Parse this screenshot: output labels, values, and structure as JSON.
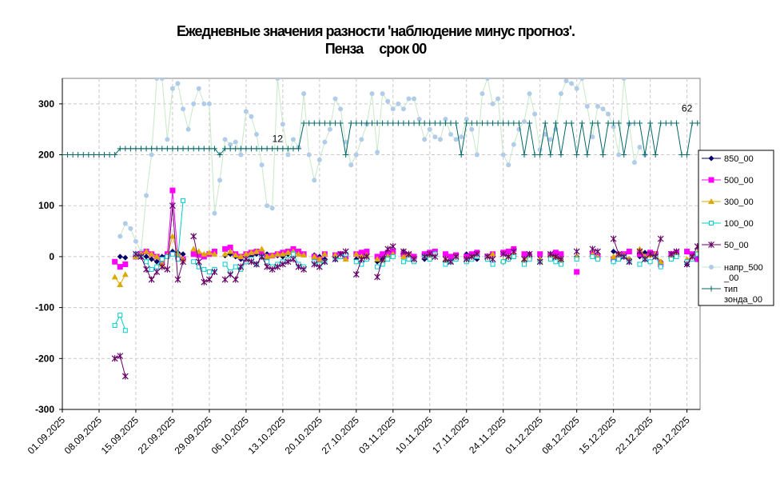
{
  "title_line1": "Ежедневные значения разности 'наблюдение минус прогноз'.",
  "title_line2": "Пенза     срок 00",
  "chart_data": {
    "type": "line",
    "title": "Ежедневные значения разности 'наблюдение минус прогноз'. Пенза срок 00",
    "xlabel": "",
    "ylabel": "",
    "ylim": [
      -300,
      350
    ],
    "yticks": [
      -300,
      -200,
      -100,
      0,
      100,
      200,
      300
    ],
    "x_start": "01.09.2025",
    "x_ticks": [
      "01.09.2025",
      "08.09.2025",
      "15.09.2025",
      "22.09.2025",
      "29.09.2025",
      "06.10.2025",
      "13.10.2025",
      "20.10.2025",
      "27.10.2025",
      "03.11.2025",
      "10.11.2025",
      "17.11.2025",
      "24.11.2025",
      "01.12.2025",
      "08.12.2025",
      "15.12.2025",
      "22.12.2025",
      "29.12.2025"
    ],
    "grid": true,
    "legend_position": "right",
    "annotations": [
      {
        "text": "12",
        "day": 41,
        "y": 225
      },
      {
        "text": "62",
        "day": 119,
        "y": 285
      }
    ],
    "series": [
      {
        "name": "850_00",
        "color": "#000066",
        "marker": "diamond",
        "start_day": 10,
        "values": [
          null,
          0,
          -2,
          null,
          5,
          3,
          0,
          -5,
          -10,
          0,
          5,
          10,
          8,
          5,
          null,
          5,
          3,
          0,
          5,
          8,
          null,
          2,
          5,
          0,
          -5,
          -10,
          0,
          5,
          8,
          5,
          3,
          2,
          0,
          5,
          8,
          10,
          5,
          null,
          3,
          0,
          -5,
          null,
          2,
          0,
          5,
          null,
          -5,
          0,
          5,
          null,
          -10,
          -5,
          0,
          5,
          null,
          10,
          5,
          0,
          null,
          -5,
          0,
          5,
          null,
          -10,
          -5,
          0,
          null,
          5,
          0,
          -5,
          null,
          0,
          5,
          null,
          -10,
          -5,
          0,
          null,
          3,
          5,
          null,
          0,
          null,
          5,
          0,
          -5,
          null,
          null,
          0,
          null,
          null,
          5,
          0,
          null,
          null,
          10,
          5,
          0,
          -5,
          null,
          0,
          8,
          5,
          0,
          -10,
          null,
          0,
          5,
          null,
          -15,
          0,
          5,
          null,
          -5,
          0,
          8,
          5,
          0,
          -10
        ]
      },
      {
        "name": "500_00",
        "color": "#FF00FF",
        "marker": "square",
        "start_day": 10,
        "values": [
          -10,
          -20,
          -15,
          null,
          0,
          5,
          10,
          5,
          0,
          -10,
          5,
          130,
          0,
          -5,
          null,
          5,
          3,
          0,
          5,
          10,
          null,
          15,
          18,
          5,
          0,
          5,
          8,
          10,
          5,
          0,
          2,
          5,
          8,
          10,
          15,
          10,
          5,
          null,
          0,
          -5,
          5,
          null,
          3,
          5,
          0,
          null,
          5,
          8,
          10,
          null,
          0,
          5,
          8,
          10,
          null,
          5,
          3,
          0,
          null,
          5,
          8,
          10,
          null,
          5,
          0,
          3,
          null,
          0,
          5,
          8,
          null,
          0,
          5,
          null,
          8,
          10,
          15,
          null,
          5,
          0,
          null,
          5,
          null,
          3,
          8,
          5,
          null,
          null,
          -30,
          null,
          null,
          5,
          0,
          null,
          null,
          -5,
          0,
          5,
          10,
          null,
          5,
          0,
          8,
          5,
          -15,
          null,
          5,
          8,
          null,
          10,
          5,
          -5,
          null,
          10,
          15,
          5,
          0,
          -5,
          8
        ]
      },
      {
        "name": "300_00",
        "color": "#DDAA00",
        "marker": "triangle",
        "start_day": 10,
        "values": [
          -40,
          -55,
          -35,
          null,
          0,
          5,
          10,
          5,
          0,
          -15,
          2,
          40,
          5,
          -5,
          null,
          15,
          10,
          5,
          8,
          5,
          null,
          5,
          10,
          3,
          0,
          5,
          8,
          10,
          15,
          0,
          2,
          5,
          5,
          8,
          10,
          5,
          3,
          null,
          0,
          -5,
          5,
          null,
          3,
          0,
          -5,
          null,
          5,
          0,
          3,
          null,
          -5,
          -10,
          0,
          5,
          null,
          0,
          5,
          -5,
          null,
          0,
          3,
          5,
          null,
          -5,
          -10,
          0,
          null,
          -5,
          0,
          3,
          null,
          0,
          5,
          null,
          -8,
          0,
          5,
          null,
          -5,
          0,
          null,
          -5,
          null,
          3,
          0,
          -5,
          null,
          null,
          0,
          null,
          null,
          5,
          0,
          null,
          null,
          0,
          5,
          3,
          -5,
          null,
          15,
          0,
          3,
          5,
          -10,
          null,
          0,
          5,
          null,
          -5,
          0,
          8,
          null,
          5,
          0,
          3,
          -5,
          0,
          5
        ]
      },
      {
        "name": "100_00",
        "color": "#00CCCC",
        "marker": "square-open",
        "start_day": 10,
        "values": [
          -135,
          -115,
          -145,
          null,
          5,
          0,
          -10,
          -25,
          -20,
          -5,
          0,
          5,
          -5,
          110,
          null,
          -10,
          -20,
          -25,
          -30,
          -25,
          null,
          -15,
          -30,
          -20,
          -25,
          -10,
          -5,
          -15,
          0,
          -10,
          -20,
          -15,
          -10,
          -5,
          5,
          -15,
          -20,
          null,
          -10,
          -15,
          -10,
          null,
          -5,
          0,
          5,
          null,
          -10,
          -15,
          -5,
          null,
          -20,
          -15,
          -5,
          0,
          null,
          -10,
          -5,
          -10,
          null,
          0,
          -5,
          5,
          null,
          -15,
          -10,
          -5,
          null,
          -10,
          -5,
          0,
          null,
          -5,
          -15,
          null,
          -10,
          -5,
          0,
          null,
          -15,
          -5,
          null,
          -10,
          null,
          -5,
          -10,
          -15,
          null,
          null,
          -5,
          null,
          null,
          0,
          -5,
          null,
          null,
          -10,
          -5,
          0,
          -10,
          null,
          -15,
          -5,
          -10,
          0,
          -20,
          null,
          -5,
          0,
          null,
          -10,
          -5,
          5,
          null,
          -15,
          -5,
          -10,
          0,
          5,
          -10
        ]
      },
      {
        "name": "50_00",
        "color": "#660066",
        "marker": "x",
        "start_day": 10,
        "values": [
          -200,
          -195,
          -235,
          null,
          5,
          0,
          -25,
          -45,
          -30,
          -20,
          -25,
          100,
          -45,
          -10,
          null,
          40,
          -10,
          -50,
          -45,
          -30,
          null,
          -45,
          -35,
          -45,
          -20,
          -5,
          -10,
          -15,
          0,
          -20,
          -25,
          -20,
          -15,
          -10,
          -5,
          -20,
          -25,
          null,
          -15,
          -20,
          -10,
          null,
          -5,
          5,
          10,
          null,
          -35,
          -5,
          0,
          null,
          -40,
          -5,
          15,
          20,
          null,
          10,
          5,
          -5,
          null,
          0,
          5,
          0,
          null,
          -5,
          -10,
          0,
          null,
          -5,
          0,
          5,
          null,
          0,
          -5,
          null,
          5,
          0,
          10,
          null,
          -5,
          5,
          null,
          -10,
          null,
          5,
          0,
          -5,
          null,
          null,
          10,
          null,
          null,
          15,
          10,
          null,
          null,
          35,
          5,
          0,
          -10,
          null,
          10,
          -5,
          5,
          0,
          35,
          null,
          5,
          10,
          null,
          -15,
          0,
          20,
          null,
          -20,
          10,
          5,
          -10,
          0,
          -5
        ]
      },
      {
        "name": "напр_500_00",
        "color": "#B0CCE8",
        "marker": "circle",
        "start_day": 10,
        "values": [
          null,
          40,
          65,
          55,
          30,
          10,
          120,
          200,
          350,
          350,
          230,
          330,
          340,
          290,
          250,
          300,
          330,
          300,
          300,
          85,
          150,
          230,
          220,
          225,
          200,
          285,
          275,
          240,
          180,
          100,
          95,
          350,
          260,
          200,
          230,
          215,
          320,
          200,
          150,
          190,
          225,
          250,
          310,
          290,
          225,
          180,
          200,
          230,
          260,
          320,
          205,
          320,
          305,
          290,
          300,
          290,
          310,
          310,
          270,
          230,
          250,
          235,
          230,
          270,
          240,
          230,
          235,
          270,
          250,
          200,
          320,
          350,
          300,
          310,
          200,
          180,
          220,
          250,
          265,
          320,
          280,
          210,
          240,
          230,
          250,
          320,
          345,
          340,
          330,
          350,
          295,
          235,
          295,
          290,
          280,
          255,
          200,
          350,
          260,
          185,
          215,
          200
        ]
      },
      {
        "name": "тип зонда_00",
        "color": "#006666",
        "marker": "plus",
        "start_day": 0,
        "values": [
          200,
          200,
          200,
          200,
          200,
          200,
          200,
          200,
          200,
          200,
          200,
          212,
          212,
          212,
          212,
          212,
          212,
          212,
          212,
          212,
          212,
          212,
          212,
          212,
          212,
          212,
          212,
          212,
          212,
          212,
          200,
          212,
          212,
          212,
          212,
          212,
          212,
          212,
          212,
          212,
          212,
          212,
          212,
          212,
          212,
          212,
          262,
          262,
          262,
          262,
          262,
          262,
          262,
          262,
          200,
          262,
          262,
          262,
          262,
          262,
          262,
          262,
          262,
          262,
          262,
          262,
          262,
          262,
          262,
          262,
          262,
          262,
          262,
          262,
          262,
          262,
          200,
          262,
          262,
          262,
          262,
          262,
          262,
          262,
          262,
          262,
          262,
          262,
          200,
          262,
          200,
          200,
          262,
          200,
          262,
          200,
          262,
          262,
          200,
          262,
          200,
          262,
          262,
          200,
          262,
          262,
          262,
          200,
          262,
          262,
          262,
          200,
          262,
          200,
          262,
          262,
          262,
          262,
          200,
          200,
          262,
          262
        ]
      }
    ]
  }
}
